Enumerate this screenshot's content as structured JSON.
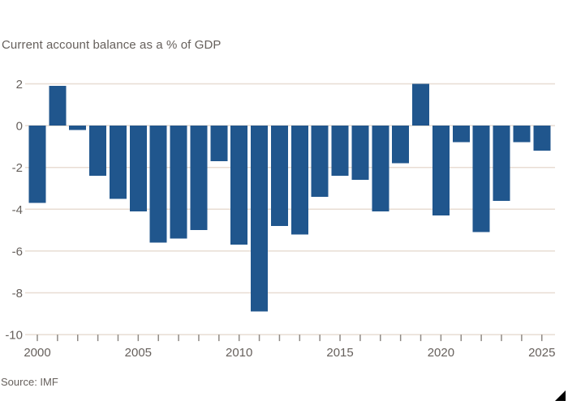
{
  "chart": {
    "title": "Current account balance as a % of GDP",
    "source": "Source: IMF"
  },
  "chart_data": {
    "type": "bar",
    "title": "Current account balance as a % of GDP",
    "source": "Source: IMF",
    "xlabel": "",
    "ylabel": "",
    "grid": true,
    "legend": false,
    "ylim": [
      -10,
      2
    ],
    "yticks": [
      2,
      0,
      -2,
      -4,
      -6,
      -8,
      -10
    ],
    "xticks": [
      2000,
      2005,
      2010,
      2015,
      2020,
      2025
    ],
    "categories": [
      2000,
      2001,
      2002,
      2003,
      2004,
      2005,
      2006,
      2007,
      2008,
      2009,
      2010,
      2011,
      2012,
      2013,
      2014,
      2015,
      2016,
      2017,
      2018,
      2019,
      2020,
      2021,
      2022,
      2023,
      2024,
      2025
    ],
    "values": [
      -3.7,
      1.9,
      -0.2,
      -2.4,
      -3.5,
      -4.1,
      -5.6,
      -5.4,
      -5.0,
      -1.7,
      -5.7,
      -8.9,
      -4.8,
      -5.2,
      -3.4,
      -2.4,
      -2.6,
      -4.1,
      -1.8,
      2.0,
      -4.3,
      -0.8,
      -5.1,
      -3.6,
      -0.8,
      -1.2
    ],
    "colors": {
      "bar": "#20568D",
      "grid": "#E8DDD3",
      "axis_text": "#66605C",
      "tick": "#8F8A85",
      "corner_triangle": "#000000",
      "background": "#FFFFFF"
    }
  }
}
